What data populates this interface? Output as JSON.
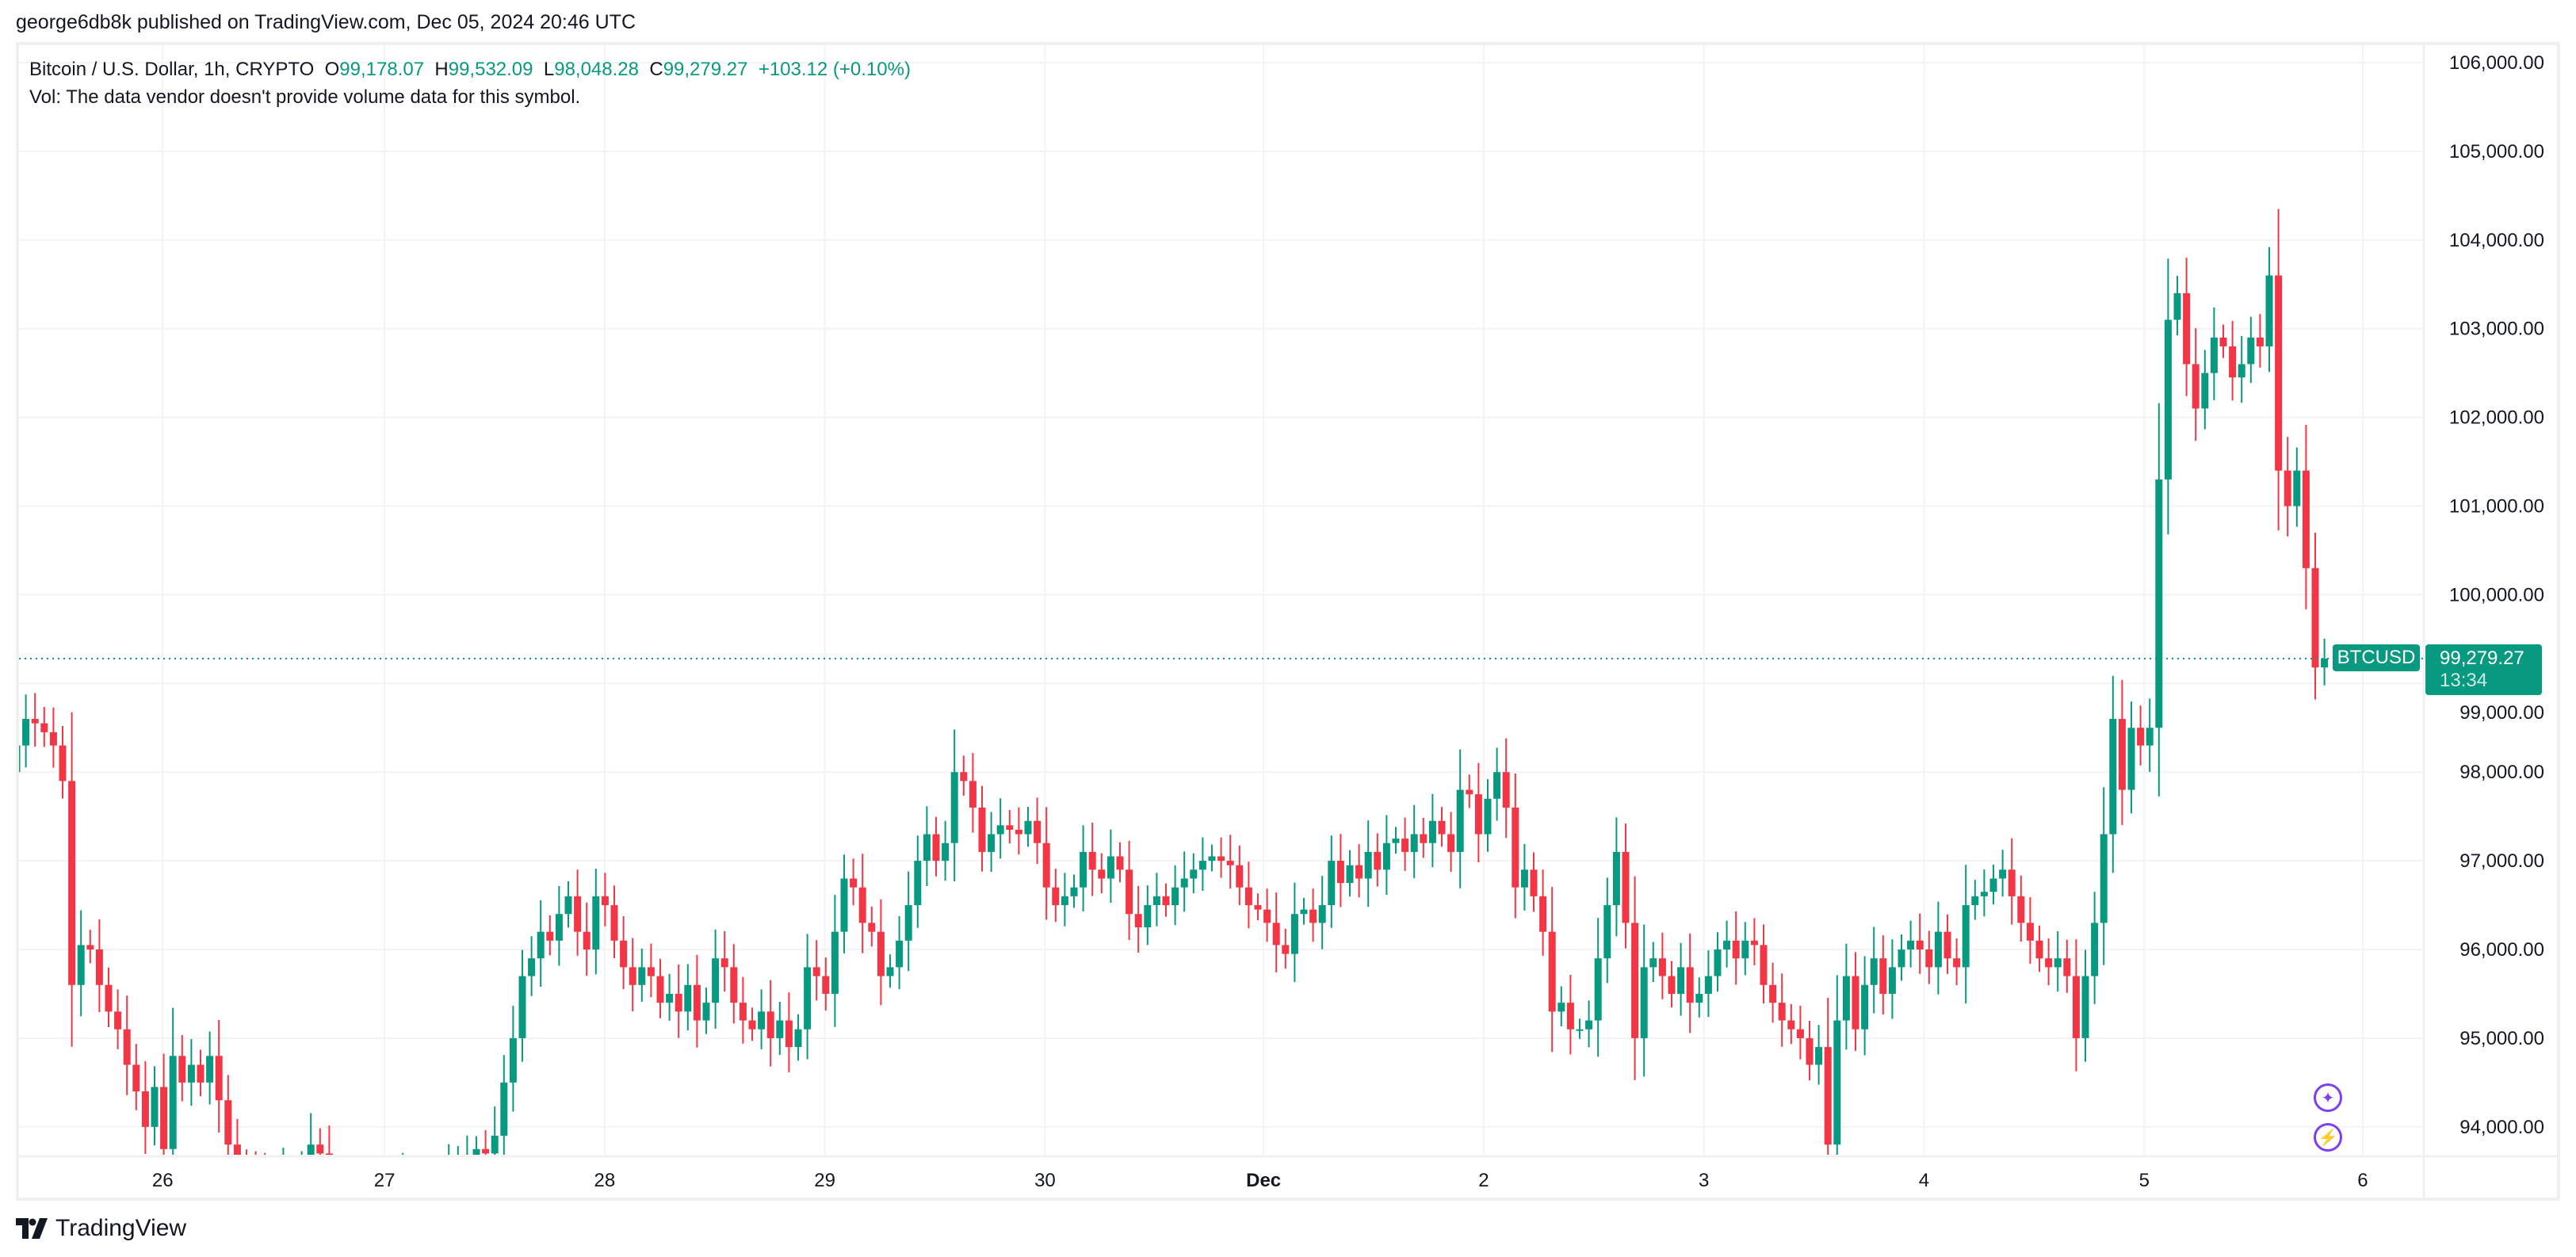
{
  "header": {
    "published": "george6db8k published on TradingView.com, Dec 05, 2024 20:46 UTC"
  },
  "legend": {
    "symbol": "Bitcoin / U.S. Dollar, 1h, CRYPTO",
    "o_label": "O",
    "o": "99,178.07",
    "h_label": "H",
    "h": "99,532.09",
    "l_label": "L",
    "l": "98,048.28",
    "c_label": "C",
    "c": "99,279.27",
    "change": "+103.12 (+0.10%)",
    "vol": "Vol: The data vendor doesn't provide volume data for this symbol."
  },
  "price_tag": {
    "ticker": "BTCUSD",
    "price": "99,279.27",
    "countdown": "13:34"
  },
  "logo": {
    "text": "TradingView"
  },
  "colors": {
    "up": "#089981",
    "down": "#F23645",
    "accent": "#7e3ff2"
  },
  "icons": [
    "sparkle-icon",
    "lightning-icon"
  ],
  "chart_data": {
    "type": "candlestick",
    "interval": "1h",
    "ylim": [
      93700,
      106200
    ],
    "y_ticks": [
      "106,000.00",
      "105,000.00",
      "104,000.00",
      "103,000.00",
      "102,000.00",
      "101,000.00",
      "100,000.00",
      "99,000.00",
      "98,000.00",
      "97,000.00",
      "96,000.00",
      "95,000.00",
      "94,000.00"
    ],
    "y_tick_values": [
      106000,
      105000,
      104000,
      103000,
      102000,
      101000,
      100000,
      99000,
      98000,
      97000,
      96000,
      95000,
      94000
    ],
    "x_ticks": [
      "26",
      "27",
      "28",
      "29",
      "30",
      "Dec",
      "2",
      "3",
      "4",
      "5",
      "6"
    ],
    "last_price": 99279.27,
    "first_open": 98000,
    "closes": [
      98300,
      98600,
      98550,
      98450,
      98300,
      97900,
      95600,
      96050,
      96000,
      95600,
      95300,
      95100,
      94700,
      94400,
      94000,
      94450,
      93750,
      94800,
      94500,
      94700,
      94500,
      94800,
      94300,
      93800,
      93600,
      93500,
      93400,
      93300,
      93400,
      93500,
      93400,
      93500,
      93800,
      93700,
      93400,
      93300,
      93200,
      93300,
      93400,
      93300,
      93200,
      93300,
      93400,
      93300,
      93200,
      93300,
      93400,
      93500,
      93600,
      93650,
      93750,
      93700,
      93900,
      94500,
      95000,
      95700,
      95900,
      96200,
      96100,
      96400,
      96600,
      96200,
      96000,
      96600,
      96500,
      96100,
      95800,
      95600,
      95800,
      95700,
      95400,
      95500,
      95300,
      95600,
      95200,
      95400,
      95900,
      95800,
      95400,
      95200,
      95100,
      95300,
      95000,
      95200,
      94900,
      95100,
      95800,
      95700,
      95500,
      96200,
      96800,
      96700,
      96300,
      96200,
      95700,
      95800,
      96100,
      96500,
      97000,
      97300,
      97000,
      97200,
      98000,
      97900,
      97600,
      97100,
      97300,
      97400,
      97350,
      97300,
      97450,
      97200,
      96700,
      96500,
      96600,
      96700,
      97100,
      96900,
      96800,
      97050,
      96900,
      96400,
      96250,
      96500,
      96600,
      96500,
      96700,
      96800,
      96900,
      97000,
      97050,
      97000,
      96950,
      96700,
      96500,
      96450,
      96300,
      96050,
      95950,
      96400,
      96450,
      96300,
      96500,
      97000,
      96750,
      96950,
      96800,
      97100,
      96900,
      97200,
      97250,
      97100,
      97300,
      97200,
      97450,
      97300,
      97100,
      97800,
      97750,
      97300,
      97700,
      98000,
      97600,
      96700,
      96900,
      96600,
      96200,
      95300,
      95400,
      95100,
      95100,
      95200,
      95900,
      96500,
      97100,
      96300,
      95000,
      95800,
      95900,
      95700,
      95500,
      95800,
      95400,
      95500,
      95700,
      96000,
      96100,
      95900,
      96100,
      96050,
      95600,
      95400,
      95200,
      95100,
      95000,
      94700,
      94900,
      93800,
      95200,
      95700,
      95100,
      95600,
      95900,
      95500,
      95800,
      96000,
      96100,
      96000,
      95800,
      96200,
      95900,
      95800,
      96500,
      96600,
      96650,
      96800,
      96900,
      96600,
      96300,
      96100,
      95900,
      95800,
      95900,
      95700,
      95000,
      95700,
      96300,
      97300,
      98600,
      97800,
      98500,
      98300,
      98500,
      101300,
      103100,
      103400,
      102600,
      102100,
      102500,
      102900,
      102800,
      102450,
      102600,
      102900,
      102800,
      103600,
      101400,
      101000,
      101400,
      100300,
      99180,
      99279.27
    ]
  }
}
